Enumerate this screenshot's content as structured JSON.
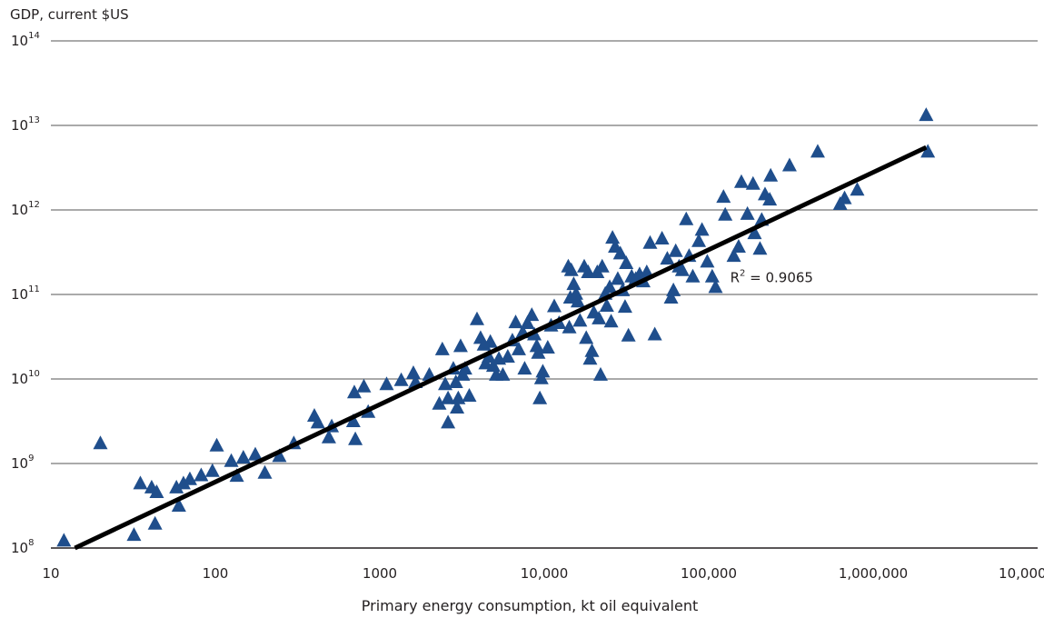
{
  "chart_data": {
    "type": "scatter",
    "title": "",
    "ylabel": "GDP, current $US",
    "xlabel": "Primary energy consumption, kt oil equivalent",
    "x_scale": "log",
    "y_scale": "log",
    "xlim": [
      10,
      10000000
    ],
    "ylim": [
      100000000,
      100000000000000
    ],
    "x_ticks": [
      {
        "value": 10,
        "label": "10"
      },
      {
        "value": 100,
        "label": "100"
      },
      {
        "value": 1000,
        "label": "1000"
      },
      {
        "value": 10000,
        "label": "10,000"
      },
      {
        "value": 100000,
        "label": "100,000"
      },
      {
        "value": 1000000,
        "label": "1,000,000"
      },
      {
        "value": 10000000,
        "label": "10,000,000"
      }
    ],
    "y_ticks": [
      {
        "value": 100000000,
        "base": "10",
        "exp": "8"
      },
      {
        "value": 1000000000,
        "base": "10",
        "exp": "9"
      },
      {
        "value": 10000000000,
        "base": "10",
        "exp": "10"
      },
      {
        "value": 100000000000,
        "base": "10",
        "exp": "11"
      },
      {
        "value": 1000000000000,
        "base": "10",
        "exp": "12"
      },
      {
        "value": 10000000000000,
        "base": "10",
        "exp": "13"
      },
      {
        "value": 100000000000000,
        "base": "10",
        "exp": "14"
      }
    ],
    "grid": "horizontal",
    "marker": "triangle",
    "marker_color": "#1f4e8c",
    "trend_color": "#000000",
    "trendline": {
      "x": [
        14,
        2100000
      ],
      "y": [
        100000000,
        5500000000000
      ]
    },
    "annotation": {
      "base": "R",
      "exp": "2",
      "rest": " = 0.9065",
      "x": 135000,
      "y": 140000000000
    },
    "points": [
      [
        12,
        120000000
      ],
      [
        20,
        1700000000
      ],
      [
        32,
        140000000
      ],
      [
        35,
        570000000
      ],
      [
        41,
        510000000
      ],
      [
        44,
        450000000
      ],
      [
        43,
        190000000
      ],
      [
        58,
        510000000
      ],
      [
        60,
        310000000
      ],
      [
        64,
        570000000
      ],
      [
        70,
        640000000
      ],
      [
        82,
        710000000
      ],
      [
        96,
        800000000
      ],
      [
        102,
        1600000000
      ],
      [
        125,
        1050000000
      ],
      [
        135,
        700000000
      ],
      [
        148,
        1150000000
      ],
      [
        175,
        1250000000
      ],
      [
        200,
        760000000
      ],
      [
        245,
        1200000000
      ],
      [
        300,
        1700000000
      ],
      [
        400,
        3600000000
      ],
      [
        420,
        3000000000
      ],
      [
        490,
        2000000000
      ],
      [
        510,
        2700000000
      ],
      [
        690,
        3100000000
      ],
      [
        700,
        6800000000
      ],
      [
        710,
        1900000000
      ],
      [
        800,
        8000000000
      ],
      [
        850,
        4000000000
      ],
      [
        1100,
        8500000000
      ],
      [
        1350,
        9500000000
      ],
      [
        1600,
        11500000000
      ],
      [
        1650,
        9000000000
      ],
      [
        2000,
        11000000000
      ],
      [
        2300,
        5000000000
      ],
      [
        2400,
        22000000000
      ],
      [
        2500,
        8500000000
      ],
      [
        2600,
        5800000000
      ],
      [
        2600,
        3000000000
      ],
      [
        2800,
        13000000000
      ],
      [
        2900,
        9000000000
      ],
      [
        2950,
        4500000000
      ],
      [
        3000,
        5800000000
      ],
      [
        3100,
        24000000000
      ],
      [
        3200,
        11000000000
      ],
      [
        3300,
        13000000000
      ],
      [
        3500,
        6200000000
      ],
      [
        3900,
        50000000000
      ],
      [
        4100,
        30000000000
      ],
      [
        4300,
        25000000000
      ],
      [
        4400,
        15000000000
      ],
      [
        4600,
        18000000000
      ],
      [
        4700,
        27000000000
      ],
      [
        4900,
        14000000000
      ],
      [
        5100,
        11000000000
      ],
      [
        5300,
        17000000000
      ],
      [
        5600,
        11000000000
      ],
      [
        6000,
        18000000000
      ],
      [
        6400,
        28000000000
      ],
      [
        6700,
        46000000000
      ],
      [
        7000,
        22000000000
      ],
      [
        7400,
        35000000000
      ],
      [
        7600,
        13000000000
      ],
      [
        7900,
        45000000000
      ],
      [
        8400,
        56000000000
      ],
      [
        8700,
        33000000000
      ],
      [
        9000,
        24000000000
      ],
      [
        9200,
        20000000000
      ],
      [
        9400,
        5800000000
      ],
      [
        9600,
        10000000000
      ],
      [
        9800,
        12000000000
      ],
      [
        10500,
        23000000000
      ],
      [
        11000,
        42000000000
      ],
      [
        11500,
        71000000000
      ],
      [
        12300,
        45000000000
      ],
      [
        14000,
        210000000000
      ],
      [
        14200,
        40000000000
      ],
      [
        14400,
        90000000000
      ],
      [
        14600,
        190000000000
      ],
      [
        15100,
        130000000000
      ],
      [
        15600,
        100000000000
      ],
      [
        16000,
        81000000000
      ],
      [
        16500,
        48000000000
      ],
      [
        17500,
        210000000000
      ],
      [
        18000,
        30000000000
      ],
      [
        18500,
        180000000000
      ],
      [
        19000,
        17000000000
      ],
      [
        19500,
        21000000000
      ],
      [
        20000,
        60000000000
      ],
      [
        21000,
        180000000000
      ],
      [
        21500,
        51000000000
      ],
      [
        22000,
        11000000000
      ],
      [
        22500,
        210000000000
      ],
      [
        23500,
        100000000000
      ],
      [
        24000,
        72000000000
      ],
      [
        25000,
        120000000000
      ],
      [
        25500,
        47000000000
      ],
      [
        26000,
        460000000000
      ],
      [
        27000,
        360000000000
      ],
      [
        28000,
        150000000000
      ],
      [
        29000,
        300000000000
      ],
      [
        30000,
        110000000000
      ],
      [
        31000,
        70000000000
      ],
      [
        31500,
        230000000000
      ],
      [
        32500,
        32000000000
      ],
      [
        34000,
        160000000000
      ],
      [
        36000,
        150000000000
      ],
      [
        38000,
        170000000000
      ],
      [
        40000,
        140000000000
      ],
      [
        42000,
        180000000000
      ],
      [
        44000,
        400000000000
      ],
      [
        47000,
        33000000000
      ],
      [
        52000,
        450000000000
      ],
      [
        56000,
        260000000000
      ],
      [
        59000,
        90000000000
      ],
      [
        61000,
        110000000000
      ],
      [
        63000,
        320000000000
      ],
      [
        66000,
        210000000000
      ],
      [
        69000,
        190000000000
      ],
      [
        73000,
        760000000000
      ],
      [
        76000,
        280000000000
      ],
      [
        80000,
        160000000000
      ],
      [
        87000,
        420000000000
      ],
      [
        91000,
        570000000000
      ],
      [
        98000,
        240000000000
      ],
      [
        105000,
        160000000000
      ],
      [
        110000,
        120000000000
      ],
      [
        123000,
        1400000000000
      ],
      [
        126000,
        860000000000
      ],
      [
        142000,
        280000000000
      ],
      [
        152000,
        360000000000
      ],
      [
        158000,
        2100000000000
      ],
      [
        172000,
        880000000000
      ],
      [
        186000,
        2000000000000
      ],
      [
        190000,
        520000000000
      ],
      [
        205000,
        340000000000
      ],
      [
        210000,
        750000000000
      ],
      [
        220000,
        1500000000000
      ],
      [
        235000,
        1300000000000
      ],
      [
        238000,
        2500000000000
      ],
      [
        310000,
        3300000000000
      ],
      [
        460000,
        4800000000000
      ],
      [
        630000,
        1150000000000
      ],
      [
        670000,
        1350000000000
      ],
      [
        800000,
        1700000000000
      ],
      [
        2100000,
        13000000000000
      ],
      [
        2150000,
        4800000000000
      ]
    ]
  }
}
